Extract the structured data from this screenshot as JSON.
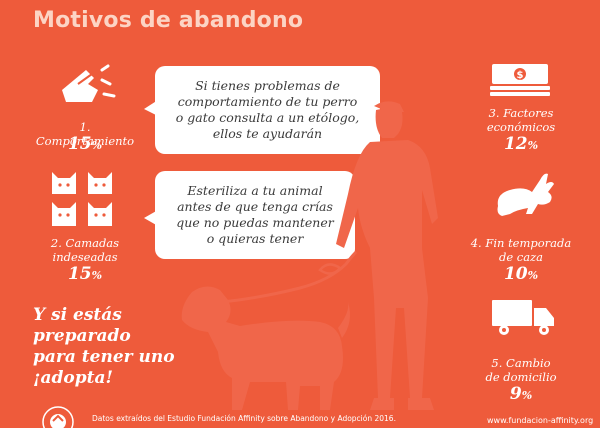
{
  "title": "Motivos de abandono",
  "colors": {
    "background": "#ee5b3b",
    "title": "#fcd4c4",
    "silhouette": "#f0664a",
    "text": "#ffffff",
    "bubble_text": "#3a3a3a"
  },
  "reasons": [
    {
      "label_line1": "1. Comportamiento",
      "label_line2": "",
      "percent": "15",
      "unit": "%",
      "icon": "torn-shoe-icon"
    },
    {
      "label_line1": "2. Camadas",
      "label_line2": "indeseadas",
      "percent": "15",
      "unit": "%",
      "icon": "kittens-icon"
    },
    {
      "label_line1": "3. Factores",
      "label_line2": "económicos",
      "percent": "12",
      "unit": "%",
      "icon": "money-stack-icon"
    },
    {
      "label_line1": "4. Fin temporada",
      "label_line2": "de caza",
      "percent": "10",
      "unit": "%",
      "icon": "rabbit-icon"
    },
    {
      "label_line1": "5. Cambio",
      "label_line2": "de domicilio",
      "percent": "9",
      "unit": "%",
      "icon": "moving-truck-icon"
    }
  ],
  "bubbles": [
    {
      "lines": [
        "Si tienes problemas de",
        "comportamiento de tu perro",
        "o gato consulta a un etólogo,",
        "ellos te ayudarán"
      ]
    },
    {
      "lines": [
        "Esteriliza a tu animal",
        "antes de que tenga crías",
        "que no puedas mantener",
        "o quieras tener"
      ]
    }
  ],
  "adopt": {
    "line1": "Y si estás",
    "line2": "preparado",
    "line3": "para tener uno",
    "line4": "¡adopta!"
  },
  "footer": "Datos extraídos del Estudio Fundación Affinity sobre Abandono y Adopción 2016.",
  "url": "www.fundacion-affinity.org"
}
